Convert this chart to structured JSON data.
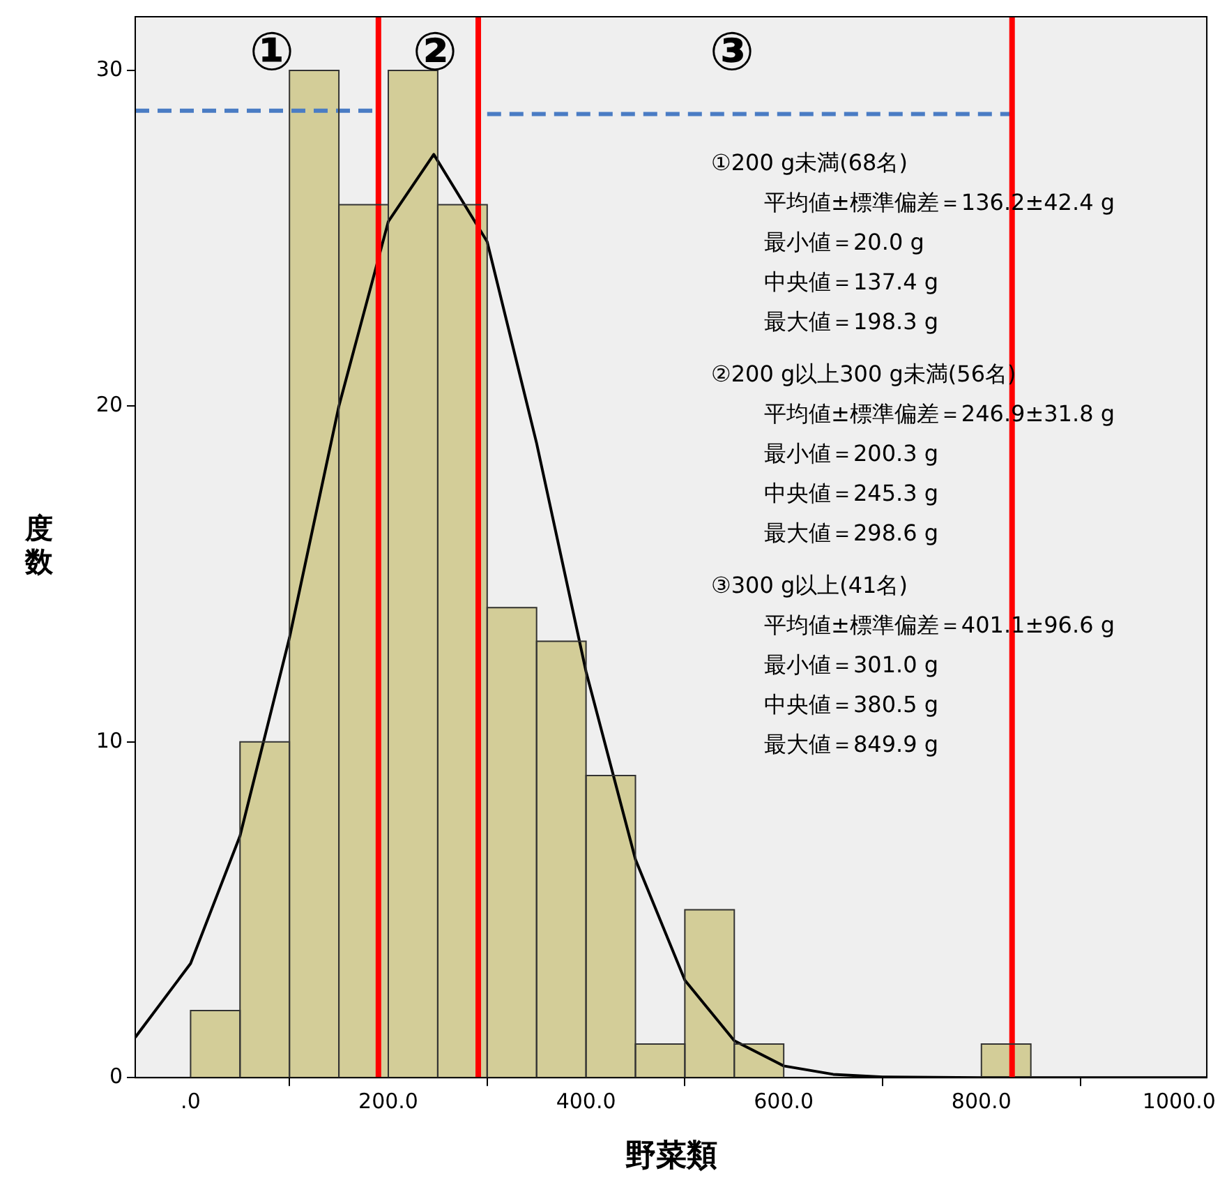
{
  "chart_data": {
    "type": "histogram",
    "xlabel": "野菜類",
    "ylabel": "度数",
    "bins": [
      0,
      50,
      100,
      150,
      200,
      250,
      300,
      350,
      400,
      450,
      500,
      550,
      600,
      650,
      700,
      750,
      800,
      850
    ],
    "values": [
      2,
      10,
      30,
      26,
      30,
      26,
      14,
      13,
      9,
      1,
      5,
      1,
      0,
      0,
      0,
      0,
      1
    ],
    "color": "#d3cd98",
    "series": [
      {
        "type": "line",
        "color": "#000000",
        "line_style": "solid",
        "x": [
          -56,
          0,
          50,
          100,
          150,
          200,
          246,
          300,
          350,
          400,
          450,
          500,
          550,
          600,
          650,
          700,
          800,
          1028
        ],
        "values": [
          1.2,
          3.4,
          7.2,
          13.1,
          20.0,
          25.5,
          27.5,
          24.9,
          18.9,
          12.1,
          6.5,
          2.9,
          1.1,
          0.35,
          0.1,
          0.02,
          0,
          0
        ]
      },
      {
        "type": "line",
        "color": "#4a7cc4",
        "line_style": "dashed",
        "x": [
          -56,
          190
        ],
        "values": [
          28.8,
          28.8
        ]
      },
      {
        "type": "line",
        "color": "#4a7cc4",
        "line_style": "dashed",
        "x": [
          300,
          830
        ],
        "values": [
          28.7,
          28.7
        ]
      }
    ],
    "ref_lines": [
      {
        "axis": "x",
        "value": 190,
        "color": "#ff0000"
      },
      {
        "axis": "x",
        "value": 291,
        "color": "#ff0000"
      },
      {
        "axis": "x",
        "value": 831,
        "color": "#ff0000"
      }
    ],
    "annotations": [
      "①",
      "②",
      "③",
      "①200 g未満(68名)",
      "平均値±標準偏差＝136.2±42.4 g",
      "最小値＝20.0 g",
      "中央値＝137.4 g",
      "最大値＝198.3 g",
      "②200 g以上300 g未満(56名)",
      "平均値±標準偏差＝246.9±31.8 g",
      "最小値＝200.3 g",
      "中央値＝245.3 g",
      "最大値＝298.6 g",
      "③300 g以上(41名)",
      "平均値±標準偏差＝401.1±96.6 g",
      "最小値＝301.0 g",
      "中央値＝380.5 g",
      "最大値＝849.9 g"
    ],
    "xlim": [
      -56,
      1028
    ],
    "ylim": [
      0,
      31.6
    ],
    "xticks": [
      {
        "value": 0,
        "label": ".0"
      },
      {
        "value": 200,
        "label": "200.0"
      },
      {
        "value": 400,
        "label": "400.0"
      },
      {
        "value": 600,
        "label": "600.0"
      },
      {
        "value": 800,
        "label": "800.0"
      },
      {
        "value": 1000,
        "label": "1000.0"
      }
    ],
    "yticks": [
      0,
      10,
      20,
      30
    ],
    "grid": false,
    "legend": false
  }
}
